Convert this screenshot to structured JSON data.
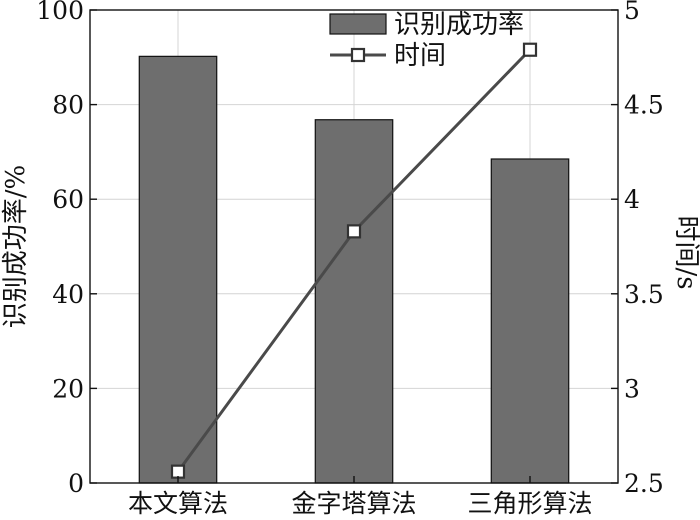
{
  "chart_data": {
    "type": "bar",
    "categories": [
      "本文算法",
      "金字塔算法",
      "三角形算法"
    ],
    "series": [
      {
        "name": "识别成功率",
        "type": "bar",
        "axis": "left",
        "values": [
          90.2,
          76.8,
          68.5
        ],
        "color": "#6e6e6e"
      },
      {
        "name": "时间",
        "type": "line",
        "axis": "right",
        "values": [
          2.56,
          3.83,
          4.79
        ],
        "color": "#4a4a4a"
      }
    ],
    "ylabel": "识别成功率/%",
    "y2label": "时间/s",
    "ylim": [
      0,
      100
    ],
    "y2lim": [
      2.5,
      5
    ],
    "yticks": [
      "0",
      "20",
      "40",
      "60",
      "80",
      "100"
    ],
    "y2ticks": [
      "2.5",
      "3",
      "3.5",
      "4",
      "4.5",
      "5"
    ],
    "grid": true,
    "legend_position": "top-right"
  }
}
